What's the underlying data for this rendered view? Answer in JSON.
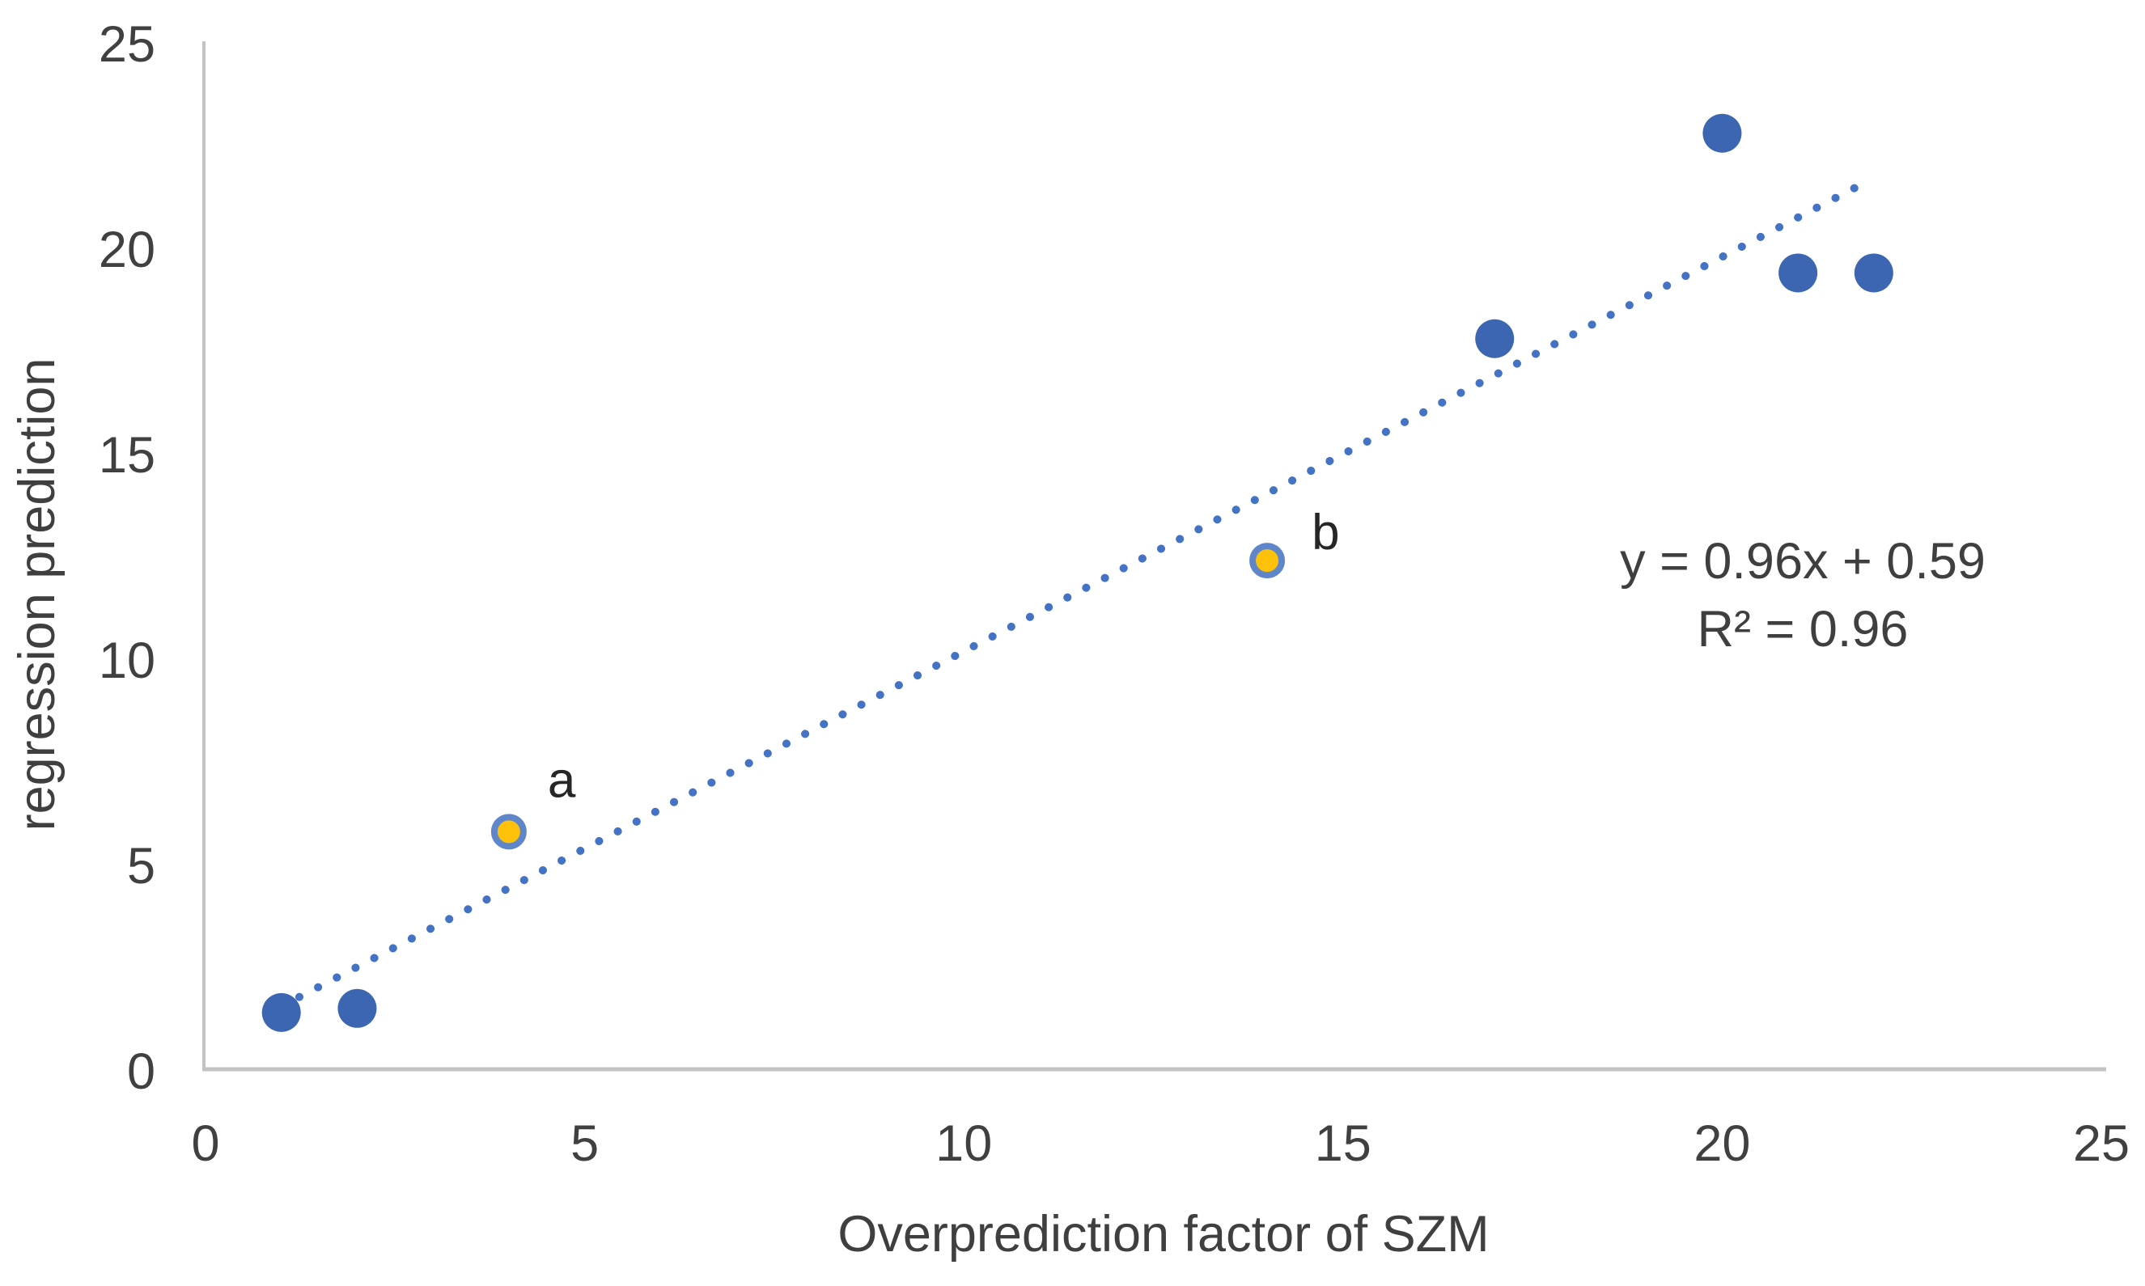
{
  "chart_data": {
    "type": "scatter",
    "title": "",
    "xlabel": "Overprediction factor of SZM",
    "ylabel": "regression prediction",
    "xlim": [
      0,
      25
    ],
    "ylim": [
      0,
      25
    ],
    "xticks": [
      "0",
      "5",
      "10",
      "15",
      "20",
      "25"
    ],
    "yticks": [
      "0",
      "5",
      "10",
      "15",
      "20",
      "25"
    ],
    "grid": false,
    "legend_position": "none",
    "series": [
      {
        "name": "blue-points",
        "marker_color": "#3C66B1",
        "marker_radius": 24,
        "points": [
          {
            "x": 1,
            "y": 1.4
          },
          {
            "x": 2,
            "y": 1.5
          },
          {
            "x": 17,
            "y": 17.8
          },
          {
            "x": 20,
            "y": 22.8
          },
          {
            "x": 21,
            "y": 19.4
          },
          {
            "x": 22,
            "y": 19.4
          }
        ]
      },
      {
        "name": "highlighted-points",
        "marker_color": "#FEC10A",
        "marker_border_color": "#5E86C9",
        "marker_border_width": 8,
        "marker_radius": 18,
        "points": [
          {
            "x": 4,
            "y": 5.8,
            "label": "a",
            "label_dx": 48,
            "label_dy": -43
          },
          {
            "x": 14,
            "y": 12.4,
            "label": "b",
            "label_dx": 55,
            "label_dy": -14
          }
        ]
      }
    ],
    "trendline": {
      "equation": "y = 0.96x + 0.59",
      "r2_label": "R² = 0.96",
      "slope": 0.96,
      "intercept": 0.59,
      "x_start": 0.99,
      "x_end": 21.97,
      "style": "dotted",
      "color": "#4472C4"
    }
  },
  "colors": {
    "axis_line": "#C3C3C3",
    "tick_text": "#404040",
    "annotation_text": "#3f3f3f",
    "background": "#ffffff"
  }
}
